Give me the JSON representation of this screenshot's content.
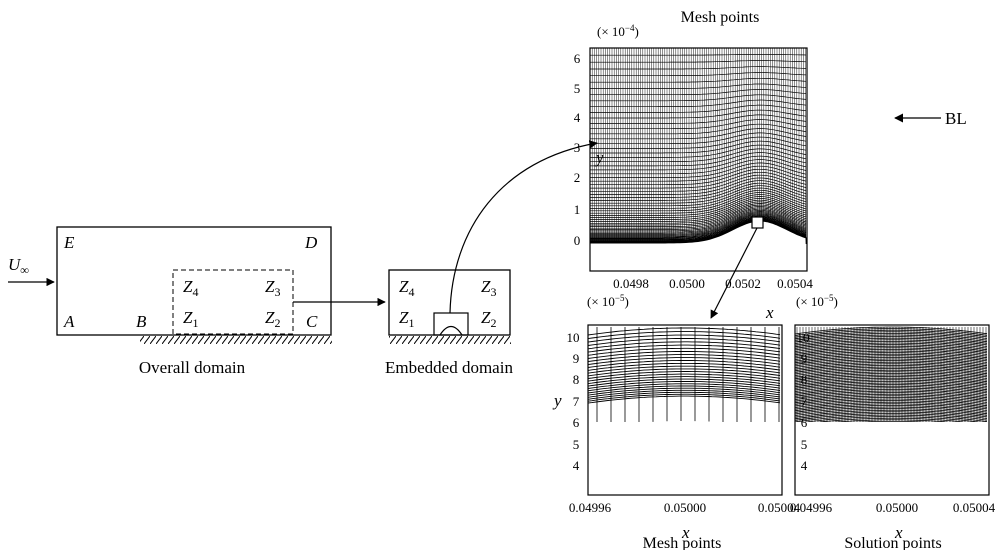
{
  "overall": {
    "labels": {
      "E": "E",
      "D": "D",
      "A": "A",
      "B": "B",
      "C": "C"
    },
    "freestream": {
      "base": "U",
      "sub": "∞"
    },
    "zones": [
      {
        "base": "Z",
        "sub": "4"
      },
      {
        "base": "Z",
        "sub": "3"
      },
      {
        "base": "Z",
        "sub": "1"
      },
      {
        "base": "Z",
        "sub": "2"
      }
    ],
    "caption": "Overall domain"
  },
  "embedded": {
    "zones": [
      {
        "base": "Z",
        "sub": "4"
      },
      {
        "base": "Z",
        "sub": "3"
      },
      {
        "base": "Z",
        "sub": "1"
      },
      {
        "base": "Z",
        "sub": "2"
      }
    ],
    "caption": "Embedded domain"
  },
  "top_plot": {
    "title": "Mesh points",
    "scale": {
      "prefix": "(× 10",
      "exp": "−4",
      "suffix": ")"
    },
    "y_ticks": [
      "6",
      "5",
      "4",
      "3",
      "2",
      "1",
      "0"
    ],
    "x_ticks": [
      "0.0498",
      "0.0500",
      "0.0502",
      "0.0504"
    ],
    "xlabel": "x",
    "ylabel": "y",
    "annotation": "BL"
  },
  "bottom_left_plot": {
    "title": "Mesh points",
    "scale": {
      "prefix": "(× 10",
      "exp": "−5",
      "suffix": ")"
    },
    "y_ticks": [
      "10",
      "9",
      "8",
      "7",
      "6",
      "5",
      "4"
    ],
    "x_ticks": [
      "0.04996",
      "0.05000",
      "0.05004"
    ],
    "xlabel": "x",
    "ylabel": "y"
  },
  "bottom_right_plot": {
    "title": "Solution points",
    "scale": {
      "prefix": "(× 10",
      "exp": "−5",
      "suffix": ")"
    },
    "y_ticks": [
      "10",
      "9",
      "8",
      "7",
      "6",
      "5",
      "4"
    ],
    "x_ticks": [
      "0.04996",
      "0.05000",
      "0.05004"
    ],
    "xlabel": "x"
  },
  "colors": {
    "ink": "#000000",
    "background": "#ffffff"
  }
}
